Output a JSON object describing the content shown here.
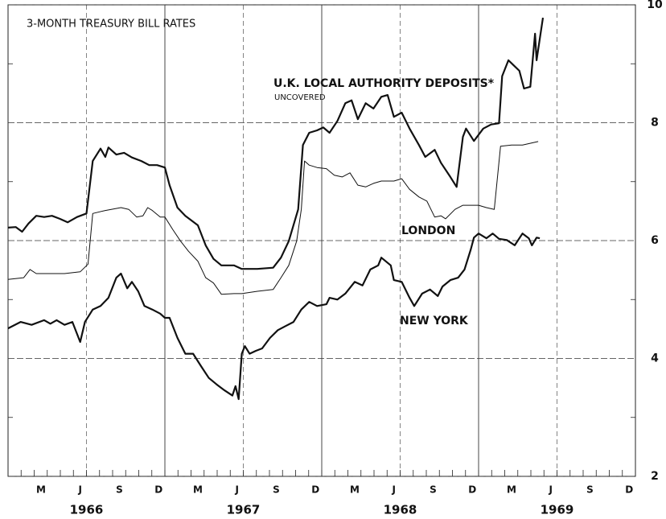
{
  "chart_data": {
    "type": "line",
    "title": "3-MONTH TREASURY BILL RATES",
    "annotations": [
      "UNCOVERED"
    ],
    "xlim": [
      1966,
      1970
    ],
    "ylim": [
      2,
      10
    ],
    "yticks": [
      2,
      4,
      6,
      8,
      10
    ],
    "yminor": [
      3,
      5,
      7,
      9
    ],
    "xticks": [
      {
        "value": 1966.21,
        "label": "M"
      },
      {
        "value": 1966.46,
        "label": "J"
      },
      {
        "value": 1966.71,
        "label": "S"
      },
      {
        "value": 1966.96,
        "label": "D"
      },
      {
        "value": 1967.21,
        "label": "M"
      },
      {
        "value": 1967.46,
        "label": "J"
      },
      {
        "value": 1967.71,
        "label": "S"
      },
      {
        "value": 1967.96,
        "label": "D"
      },
      {
        "value": 1968.21,
        "label": "M"
      },
      {
        "value": 1968.46,
        "label": "J"
      },
      {
        "value": 1968.71,
        "label": "S"
      },
      {
        "value": 1968.96,
        "label": "D"
      },
      {
        "value": 1969.21,
        "label": "M"
      },
      {
        "value": 1969.46,
        "label": "J"
      },
      {
        "value": 1969.71,
        "label": "S"
      },
      {
        "value": 1969.96,
        "label": "D"
      }
    ],
    "year_labels": [
      {
        "value": 1966.5,
        "label": "1966"
      },
      {
        "value": 1967.5,
        "label": "1967"
      },
      {
        "value": 1968.5,
        "label": "1968"
      },
      {
        "value": 1969.5,
        "label": "1969"
      }
    ],
    "grid": true,
    "series": [
      {
        "name": "U.K. LOCAL AUTHORITY DEPOSITS*",
        "color": "#111111",
        "line_width": 2.2,
        "x": [
          1966.0,
          1966.05,
          1966.09,
          1966.13,
          1966.18,
          1966.23,
          1966.28,
          1966.33,
          1966.38,
          1966.44,
          1966.5,
          1966.54,
          1966.59,
          1966.62,
          1966.64,
          1966.69,
          1966.74,
          1966.79,
          1966.85,
          1966.9,
          1966.95,
          1967.0,
          1967.03,
          1967.08,
          1967.13,
          1967.21,
          1967.26,
          1967.31,
          1967.36,
          1967.44,
          1967.49,
          1967.59,
          1967.69,
          1967.74,
          1967.79,
          1967.85,
          1967.88,
          1967.92,
          1967.97,
          1968.01,
          1968.05,
          1968.1,
          1968.15,
          1968.19,
          1968.23,
          1968.28,
          1968.33,
          1968.38,
          1968.42,
          1968.46,
          1968.51,
          1968.56,
          1968.62,
          1968.66,
          1968.72,
          1968.76,
          1968.82,
          1968.86,
          1968.9,
          1968.92,
          1968.97,
          1969.03,
          1969.08,
          1969.13,
          1969.15,
          1969.19,
          1969.26,
          1969.29,
          1969.33,
          1969.36,
          1969.37,
          1969.41
        ],
        "values": [
          6.22,
          6.23,
          6.15,
          6.29,
          6.42,
          6.4,
          6.42,
          6.37,
          6.31,
          6.4,
          6.46,
          7.35,
          7.56,
          7.42,
          7.58,
          7.46,
          7.49,
          7.41,
          7.35,
          7.28,
          7.28,
          7.24,
          6.94,
          6.56,
          6.42,
          6.26,
          5.92,
          5.69,
          5.58,
          5.58,
          5.52,
          5.52,
          5.54,
          5.71,
          5.99,
          6.53,
          7.62,
          7.83,
          7.87,
          7.92,
          7.83,
          8.03,
          8.33,
          8.38,
          8.06,
          8.33,
          8.24,
          8.44,
          8.47,
          8.1,
          8.17,
          7.9,
          7.62,
          7.42,
          7.54,
          7.32,
          7.08,
          6.91,
          7.76,
          7.9,
          7.69,
          7.9,
          7.97,
          7.99,
          8.79,
          9.06,
          8.88,
          8.58,
          8.61,
          9.51,
          9.06,
          9.78
        ]
      },
      {
        "name": "LONDON",
        "color": "#111111",
        "line_width": 1,
        "x": [
          1966.0,
          1966.1,
          1966.14,
          1966.18,
          1966.26,
          1966.36,
          1966.46,
          1966.51,
          1966.54,
          1966.62,
          1966.72,
          1966.77,
          1966.82,
          1966.86,
          1966.89,
          1966.92,
          1966.97,
          1967.0,
          1967.05,
          1967.1,
          1967.15,
          1967.21,
          1967.26,
          1967.31,
          1967.36,
          1967.44,
          1967.49,
          1967.59,
          1967.69,
          1967.74,
          1967.79,
          1967.84,
          1967.87,
          1967.89,
          1967.92,
          1967.97,
          1968.03,
          1968.08,
          1968.13,
          1968.18,
          1968.23,
          1968.28,
          1968.33,
          1968.38,
          1968.46,
          1968.51,
          1968.56,
          1968.62,
          1968.67,
          1968.72,
          1968.76,
          1968.79,
          1968.85,
          1968.9,
          1968.95,
          1969.0,
          1969.05,
          1969.1,
          1969.14,
          1969.21,
          1969.28,
          1969.38
        ],
        "values": [
          5.34,
          5.37,
          5.51,
          5.44,
          5.44,
          5.44,
          5.47,
          5.6,
          6.46,
          6.51,
          6.56,
          6.53,
          6.4,
          6.42,
          6.56,
          6.51,
          6.4,
          6.4,
          6.19,
          5.99,
          5.82,
          5.65,
          5.37,
          5.28,
          5.09,
          5.1,
          5.1,
          5.14,
          5.17,
          5.37,
          5.58,
          5.99,
          6.53,
          7.35,
          7.28,
          7.24,
          7.22,
          7.11,
          7.08,
          7.15,
          6.94,
          6.91,
          6.97,
          7.01,
          7.01,
          7.05,
          6.87,
          6.74,
          6.67,
          6.4,
          6.42,
          6.37,
          6.53,
          6.6,
          6.6,
          6.6,
          6.56,
          6.53,
          7.6,
          7.62,
          7.62,
          7.68
        ]
      },
      {
        "name": "NEW YORK",
        "color": "#111111",
        "line_width": 2.2,
        "x": [
          1966.0,
          1966.08,
          1966.15,
          1966.23,
          1966.27,
          1966.31,
          1966.36,
          1966.41,
          1966.46,
          1966.49,
          1966.54,
          1966.59,
          1966.64,
          1966.69,
          1966.72,
          1966.76,
          1966.79,
          1966.83,
          1966.87,
          1966.92,
          1966.97,
          1967.0,
          1967.03,
          1967.08,
          1967.13,
          1967.18,
          1967.23,
          1967.28,
          1967.33,
          1967.38,
          1967.43,
          1967.45,
          1967.47,
          1967.49,
          1967.51,
          1967.54,
          1967.58,
          1967.62,
          1967.67,
          1967.72,
          1967.77,
          1967.82,
          1967.87,
          1967.92,
          1967.97,
          1968.03,
          1968.05,
          1968.1,
          1968.15,
          1968.21,
          1968.26,
          1968.31,
          1968.36,
          1968.38,
          1968.44,
          1968.46,
          1968.51,
          1968.56,
          1968.59,
          1968.64,
          1968.69,
          1968.74,
          1968.77,
          1968.82,
          1968.87,
          1968.91,
          1968.95,
          1968.97,
          1969.0,
          1969.05,
          1969.09,
          1969.13,
          1969.18,
          1969.23,
          1969.28,
          1969.32,
          1969.34,
          1969.37,
          1969.39
        ],
        "values": [
          4.51,
          4.62,
          4.57,
          4.65,
          4.59,
          4.65,
          4.57,
          4.62,
          4.28,
          4.62,
          4.83,
          4.89,
          5.03,
          5.37,
          5.44,
          5.19,
          5.3,
          5.14,
          4.89,
          4.83,
          4.76,
          4.69,
          4.69,
          4.35,
          4.08,
          4.08,
          3.87,
          3.67,
          3.56,
          3.46,
          3.37,
          3.53,
          3.31,
          4.08,
          4.21,
          4.08,
          4.13,
          4.17,
          4.35,
          4.48,
          4.55,
          4.62,
          4.83,
          4.96,
          4.89,
          4.92,
          5.03,
          5.0,
          5.1,
          5.3,
          5.24,
          5.51,
          5.58,
          5.71,
          5.58,
          5.33,
          5.3,
          5.03,
          4.89,
          5.1,
          5.17,
          5.06,
          5.22,
          5.33,
          5.37,
          5.51,
          5.85,
          6.05,
          6.12,
          6.04,
          6.12,
          6.03,
          6.01,
          5.92,
          6.12,
          6.04,
          5.92,
          6.05,
          6.04
        ]
      }
    ]
  }
}
